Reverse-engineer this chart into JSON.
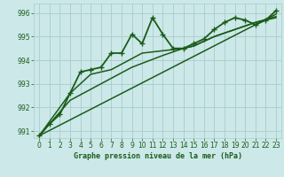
{
  "title": "Graphe pression niveau de la mer (hPa)",
  "bg_color": "#cce8e8",
  "grid_color": "#aacccc",
  "line_color": "#1a5c1a",
  "xlim": [
    -0.5,
    23.5
  ],
  "ylim": [
    990.7,
    996.4
  ],
  "yticks": [
    991,
    992,
    993,
    994,
    995,
    996
  ],
  "xticks": [
    0,
    1,
    2,
    3,
    4,
    5,
    6,
    7,
    8,
    9,
    10,
    11,
    12,
    13,
    14,
    15,
    16,
    17,
    18,
    19,
    20,
    21,
    22,
    23
  ],
  "series": [
    {
      "x": [
        0,
        1,
        2,
        3,
        4,
        5,
        6,
        7,
        8,
        9,
        10,
        11,
        12,
        13,
        14,
        15,
        16,
        17,
        18,
        19,
        20,
        21,
        22,
        23
      ],
      "y": [
        990.8,
        991.3,
        991.7,
        992.6,
        993.5,
        993.6,
        993.7,
        994.3,
        994.3,
        995.1,
        994.7,
        995.8,
        995.1,
        994.5,
        994.5,
        994.7,
        994.9,
        995.3,
        995.6,
        995.8,
        995.7,
        995.5,
        995.7,
        996.1
      ],
      "marker": "+",
      "lw": 1.3
    },
    {
      "x": [
        0,
        3,
        5,
        7,
        10,
        14,
        15,
        17,
        19,
        21,
        23
      ],
      "y": [
        990.8,
        992.6,
        993.4,
        993.6,
        994.3,
        994.5,
        994.6,
        995.0,
        995.3,
        995.6,
        995.8
      ],
      "marker": null,
      "lw": 1.1
    },
    {
      "x": [
        0,
        3,
        6,
        9,
        12,
        14,
        15,
        17,
        19,
        21,
        23
      ],
      "y": [
        990.8,
        992.3,
        993.0,
        993.7,
        994.2,
        994.5,
        994.6,
        995.0,
        995.3,
        995.6,
        995.85
      ],
      "marker": null,
      "lw": 1.1
    },
    {
      "x": [
        0,
        23
      ],
      "y": [
        990.8,
        995.95
      ],
      "marker": null,
      "lw": 1.1
    }
  ]
}
